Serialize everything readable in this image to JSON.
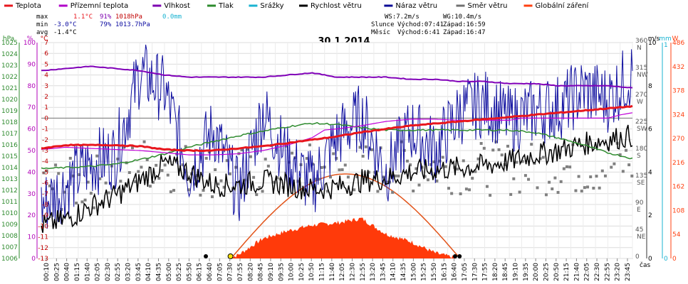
{
  "chart_data": {
    "type": "line",
    "title": "30.1.2014",
    "legend": [
      {
        "name": "Teplota",
        "color": "#e8161d"
      },
      {
        "name": "Přízemní teplota",
        "color": "#b000c8"
      },
      {
        "name": "Vlhkost",
        "color": "#7c00b0"
      },
      {
        "name": "Tlak",
        "color": "#2e8b2e"
      },
      {
        "name": "Srážky",
        "color": "#1ab3d1"
      },
      {
        "name": "Rychlost větru",
        "color": "#000000"
      },
      {
        "name": "Náraz větru",
        "color": "#0a0a96"
      },
      {
        "name": "Směr větru",
        "color": "#707070"
      },
      {
        "name": "Globální záření",
        "color": "#ff4010"
      }
    ],
    "stats": {
      "max_label": "max",
      "max_temp": "1.1°C",
      "max_hum": "91%",
      "max_press": "1018hPa",
      "rain": "0.0mm",
      "min_label": "min",
      "min_temp": "-3.0°C",
      "min_hum": "79%",
      "min_press": "1013.7hPa",
      "avg_label": "avg",
      "avg_temp": "-1.4°C"
    },
    "info": {
      "ws": "WS:7.2m/s",
      "wg": "WG:10.4m/s",
      "sun_label": "Slunce",
      "sun_rise": "Východ:07:41",
      "sun_set": "Západ:16:59",
      "moon_label": "Měsíc",
      "moon_rise": "Východ:6:41",
      "moon_set": "Západ:16:47"
    },
    "axes": {
      "hpa_label": "hPa",
      "hpa_ticks": [
        "1025",
        "1024",
        "1023",
        "1022",
        "1021",
        "1020",
        "1019",
        "1018",
        "1017",
        "1016",
        "1015",
        "1014",
        "1013",
        "1012",
        "1011",
        "1010",
        "1009",
        "1008",
        "1007",
        "1006"
      ],
      "pct_label": "%",
      "pct_ticks": [
        "100",
        "90",
        "80",
        "70",
        "60",
        "50",
        "40",
        "30",
        "20",
        "10",
        "0"
      ],
      "temp_label": "°C",
      "temp_ticks": [
        "7",
        "6",
        "5",
        "4",
        "3",
        "2",
        "1",
        "0",
        "-1",
        "-2",
        "-3",
        "-4",
        "-5",
        "-6",
        "-7",
        "-8",
        "-9",
        "-10",
        "-11",
        "-12",
        "-13"
      ],
      "dir_ticks": [
        {
          "v": "360",
          "d": "N"
        },
        {
          "v": "315",
          "d": "NW"
        },
        {
          "v": "270",
          "d": "W"
        },
        {
          "v": "225",
          "d": "SW"
        },
        {
          "v": "180",
          "d": "S"
        },
        {
          "v": "135",
          "d": "SE"
        },
        {
          "v": "90",
          "d": "E"
        },
        {
          "v": "45",
          "d": "NE"
        },
        {
          "v": "0",
          "d": ""
        }
      ],
      "ms_label": "m/s",
      "ms_ticks": [
        "10",
        "8",
        "6",
        "4",
        "2",
        "0"
      ],
      "mm_label": "mm",
      "mm_ticks": [
        "1",
        "0"
      ],
      "wm_label": "W",
      "wm_ticks": [
        "486",
        "432",
        "378",
        "324",
        "270",
        "216",
        "162",
        "108",
        "54",
        "0"
      ],
      "x_label": "čas",
      "x_ticks": [
        "00:10",
        "00:25",
        "00:40",
        "01:15",
        "01:40",
        "02:05",
        "02:30",
        "02:55",
        "03:20",
        "03:45",
        "04:10",
        "04:35",
        "05:00",
        "05:25",
        "05:50",
        "06:15",
        "06:40",
        "07:05",
        "07:30",
        "07:55",
        "08:20",
        "08:45",
        "09:10",
        "09:35",
        "10:00",
        "10:25",
        "10:50",
        "11:15",
        "11:40",
        "12:05",
        "12:30",
        "12:55",
        "13:20",
        "13:45",
        "14:10",
        "14:35",
        "15:00",
        "15:25",
        "15:50",
        "16:15",
        "16:40",
        "17:05",
        "17:30",
        "17:55",
        "18:20",
        "18:45",
        "19:10",
        "19:35",
        "20:00",
        "20:25",
        "20:50",
        "21:15",
        "21:40",
        "22:05",
        "22:30",
        "22:55",
        "23:20",
        "23:45"
      ]
    },
    "ranges": {
      "hours": [
        0,
        24
      ],
      "temp": [
        -13,
        7
      ],
      "humidity": [
        0,
        100
      ],
      "pressure": [
        1006,
        1025
      ],
      "wind_ms": [
        0,
        10
      ],
      "solar_wm2": [
        0,
        486
      ],
      "direction_deg": [
        0,
        360
      ]
    },
    "series": [
      {
        "name": "Teplota",
        "unit": "°C",
        "points": [
          [
            0,
            -2.8
          ],
          [
            1,
            -2.5
          ],
          [
            2,
            -2.5
          ],
          [
            3,
            -2.5
          ],
          [
            4,
            -2.6
          ],
          [
            5,
            -2.9
          ],
          [
            6,
            -3.0
          ],
          [
            7,
            -3.0
          ],
          [
            8,
            -2.8
          ],
          [
            9,
            -2.6
          ],
          [
            10,
            -2.3
          ],
          [
            11,
            -2.0
          ],
          [
            12,
            -1.7
          ],
          [
            13,
            -1.3
          ],
          [
            14,
            -1.0
          ],
          [
            15,
            -0.7
          ],
          [
            16,
            -0.5
          ],
          [
            17,
            -0.3
          ],
          [
            18,
            -0.1
          ],
          [
            19,
            0.1
          ],
          [
            20,
            0.3
          ],
          [
            21,
            0.5
          ],
          [
            22,
            0.7
          ],
          [
            23,
            0.9
          ],
          [
            24,
            1.1
          ]
        ]
      },
      {
        "name": "Přízemní teplota",
        "unit": "°C",
        "points": [
          [
            0,
            -2.9
          ],
          [
            1,
            -2.7
          ],
          [
            2,
            -2.8
          ],
          [
            3,
            -2.9
          ],
          [
            4,
            -3.0
          ],
          [
            5,
            -3.2
          ],
          [
            6,
            -3.4
          ],
          [
            7,
            -3.4
          ],
          [
            8,
            -3.3
          ],
          [
            9,
            -3.0
          ],
          [
            10,
            -2.5
          ],
          [
            11,
            -1.8
          ],
          [
            11.5,
            -1.1
          ],
          [
            12,
            -1.0
          ],
          [
            13,
            -0.7
          ],
          [
            14,
            -0.3
          ],
          [
            15,
            -0.1
          ],
          [
            16,
            -0.1
          ],
          [
            17,
            -0.2
          ],
          [
            18,
            -0.2
          ],
          [
            19,
            -0.2
          ],
          [
            19.5,
            0.0
          ],
          [
            22,
            0.0
          ],
          [
            23,
            0.0
          ],
          [
            23.5,
            0.3
          ],
          [
            24,
            0.5
          ]
        ]
      },
      {
        "name": "Vlhkost",
        "unit": "%",
        "points": [
          [
            0,
            87
          ],
          [
            1,
            88
          ],
          [
            2,
            89
          ],
          [
            3,
            88
          ],
          [
            4,
            87
          ],
          [
            5,
            85
          ],
          [
            6,
            84
          ],
          [
            7,
            84
          ],
          [
            8,
            84
          ],
          [
            9,
            84
          ],
          [
            10,
            85
          ],
          [
            11,
            86
          ],
          [
            12,
            84
          ],
          [
            13,
            84
          ],
          [
            14,
            84
          ],
          [
            15,
            83
          ],
          [
            16,
            83
          ],
          [
            17,
            82
          ],
          [
            18,
            82
          ],
          [
            19,
            81
          ],
          [
            20,
            81
          ],
          [
            21,
            80
          ],
          [
            22,
            80
          ],
          [
            23,
            80
          ],
          [
            24,
            79
          ]
        ]
      },
      {
        "name": "Tlak",
        "unit": "hPa",
        "points": [
          [
            0,
            1013.9
          ],
          [
            1,
            1014.0
          ],
          [
            2,
            1014.1
          ],
          [
            3,
            1014.3
          ],
          [
            4,
            1014.7
          ],
          [
            5,
            1015.2
          ],
          [
            6,
            1015.8
          ],
          [
            7,
            1016.3
          ],
          [
            8,
            1016.8
          ],
          [
            9,
            1017.2
          ],
          [
            10,
            1017.6
          ],
          [
            11,
            1017.9
          ],
          [
            12,
            1017.8
          ],
          [
            13,
            1017.5
          ],
          [
            14,
            1017.3
          ],
          [
            15,
            1017.3
          ],
          [
            16,
            1017.3
          ],
          [
            17,
            1017.3
          ],
          [
            18,
            1017.3
          ],
          [
            19,
            1017.3
          ],
          [
            20,
            1017.1
          ],
          [
            21,
            1016.6
          ],
          [
            22,
            1016.0
          ],
          [
            23,
            1015.3
          ],
          [
            24,
            1014.8
          ]
        ]
      },
      {
        "name": "Srážky",
        "unit": "mm",
        "points": [
          [
            0,
            0
          ],
          [
            24,
            0
          ]
        ]
      },
      {
        "name": "Rychlost větru",
        "unit": "m/s",
        "points": [
          [
            0,
            1.5
          ],
          [
            1,
            1.8
          ],
          [
            2,
            2.4
          ],
          [
            3,
            2.9
          ],
          [
            4,
            3.6
          ],
          [
            5,
            4.4
          ],
          [
            6,
            4.0
          ],
          [
            7,
            3.4
          ],
          [
            8,
            3.4
          ],
          [
            9,
            3.6
          ],
          [
            10,
            3.4
          ],
          [
            11,
            3.2
          ],
          [
            12,
            3.3
          ],
          [
            13,
            3.6
          ],
          [
            14,
            3.7
          ],
          [
            15,
            4.0
          ],
          [
            16,
            4.1
          ],
          [
            17,
            4.2
          ],
          [
            18,
            4.3
          ],
          [
            19,
            4.5
          ],
          [
            20,
            4.8
          ],
          [
            21,
            5.0
          ],
          [
            22,
            5.3
          ],
          [
            23,
            5.5
          ],
          [
            24,
            5.7
          ]
        ]
      },
      {
        "name": "Náraz větru",
        "unit": "m/s",
        "points": [
          [
            0,
            2.4
          ],
          [
            1,
            3.4
          ],
          [
            2,
            4.4
          ],
          [
            3,
            4.8
          ],
          [
            4,
            8.6
          ],
          [
            5,
            7.8
          ],
          [
            6,
            4.0
          ],
          [
            7,
            6.0
          ],
          [
            8,
            3.0
          ],
          [
            9,
            6.8
          ],
          [
            10,
            4.6
          ],
          [
            11,
            3.4
          ],
          [
            12,
            5.6
          ],
          [
            13,
            6.6
          ],
          [
            14,
            4.0
          ],
          [
            15,
            6.0
          ],
          [
            16,
            5.0
          ],
          [
            17,
            6.8
          ],
          [
            18,
            7.2
          ],
          [
            19,
            6.4
          ],
          [
            20,
            6.8
          ],
          [
            21,
            7.0
          ],
          [
            22,
            7.8
          ],
          [
            23,
            7.4
          ],
          [
            24,
            8.6
          ]
        ]
      },
      {
        "name": "Směr větru",
        "unit": "°",
        "points": [
          [
            0,
            120
          ],
          [
            2,
            125
          ],
          [
            4,
            160
          ],
          [
            6,
            150
          ],
          [
            8,
            140
          ],
          [
            10,
            150
          ],
          [
            12,
            145
          ],
          [
            14,
            150
          ],
          [
            16,
            155
          ],
          [
            18,
            150
          ],
          [
            20,
            150
          ],
          [
            22,
            150
          ],
          [
            24,
            160
          ]
        ]
      },
      {
        "name": "Globální záření",
        "unit": "W/m²",
        "points": [
          [
            7.6,
            0
          ],
          [
            8,
            8
          ],
          [
            9,
            45
          ],
          [
            10,
            62
          ],
          [
            11,
            75
          ],
          [
            12,
            80
          ],
          [
            13,
            90
          ],
          [
            14,
            55
          ],
          [
            15,
            38
          ],
          [
            16,
            12
          ],
          [
            16.9,
            0
          ]
        ]
      },
      {
        "name": "Sun elevation",
        "unit": "rel",
        "points": [
          [
            7.7,
            0
          ],
          [
            12.3,
            1
          ],
          [
            17.0,
            0
          ]
        ]
      }
    ]
  }
}
